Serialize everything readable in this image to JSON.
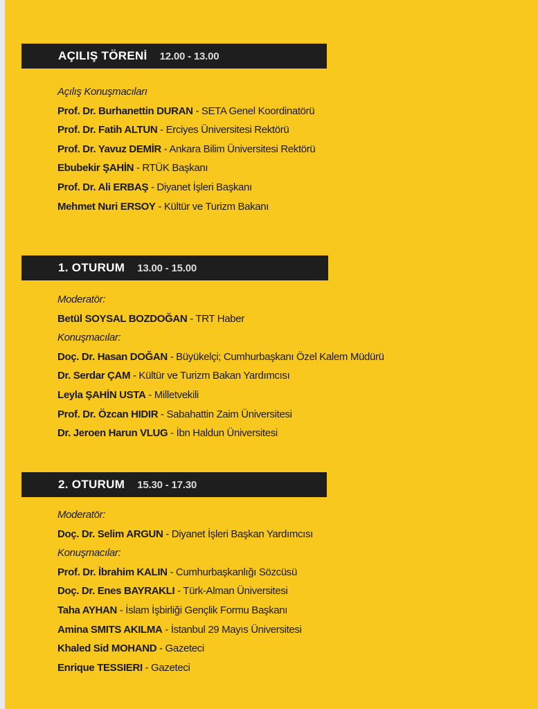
{
  "sections": [
    {
      "title": "AÇILIŞ TÖRENİ",
      "time": "12.00 - 13.00",
      "rows": [
        {
          "label": "Açılış Konuşmacıları"
        },
        {
          "name": "Prof. Dr. Burhanettin DURAN",
          "role": " - SETA Genel Koordinatörü"
        },
        {
          "name": "Prof. Dr. Fatih ALTUN",
          "role": " - Erciyes Üniversitesi Rektörü"
        },
        {
          "name": "Prof. Dr. Yavuz DEMİR",
          "role": " - Ankara Bilim Üniversitesi Rektörü"
        },
        {
          "name": "Ebubekir ŞAHİN",
          "role": " - RTÜK Başkanı"
        },
        {
          "name": "Prof. Dr. Ali ERBAŞ",
          "role": " - Diyanet İşleri Başkanı"
        },
        {
          "name": "Mehmet Nuri ERSOY",
          "role": " - Kültür ve Turizm Bakanı"
        }
      ]
    },
    {
      "title": "1. OTURUM",
      "time": "13.00 - 15.00",
      "rows": [
        {
          "label": "Moderatör:"
        },
        {
          "name": "Betül SOYSAL BOZDOĞAN",
          "role": " - TRT Haber"
        },
        {
          "label": "Konuşmacılar:"
        },
        {
          "name": "Doç. Dr. Hasan DOĞAN",
          "role": " - Büyükelçi; Cumhurbaşkanı Özel Kalem Müdürü"
        },
        {
          "name": "Dr. Serdar ÇAM",
          "role": " - Kültür ve Turizm Bakan Yardımcısı"
        },
        {
          "name": "Leyla ŞAHİN USTA",
          "role": " - Milletvekili"
        },
        {
          "name": "Prof. Dr. Özcan HIDIR",
          "role": " - Sabahattin Zaim Üniversitesi"
        },
        {
          "name": "Dr. Jeroen Harun VLUG",
          "role": " - İbn Haldun Üniversitesi"
        }
      ]
    },
    {
      "title": "2. OTURUM",
      "time": "15.30 - 17.30",
      "rows": [
        {
          "label": "Moderatör:"
        },
        {
          "name": "Doç. Dr. Selim ARGUN",
          "role": " - Diyanet İşleri Başkan Yardımcısı"
        },
        {
          "label": "Konuşmacılar:"
        },
        {
          "name": "Prof. Dr. İbrahim KALIN",
          "role": " - Cumhurbaşkanlığı Sözcüsü"
        },
        {
          "name": "Doç. Dr. Enes BAYRAKLI",
          "role": " - Türk-Alman Üniversitesi"
        },
        {
          "name": "Taha AYHAN",
          "role": " - İslam İşbirliği Gençlik Formu Başkanı"
        },
        {
          "name": "Amina SMITS AKILMA",
          "role": " - İstanbul 29 Mayıs Üniversitesi"
        },
        {
          "name": "Khaled Sid MOHAND",
          "role": " - Gazeteci"
        },
        {
          "name": "Enrique TESSIERI",
          "role": " - Gazeteci"
        }
      ]
    }
  ]
}
